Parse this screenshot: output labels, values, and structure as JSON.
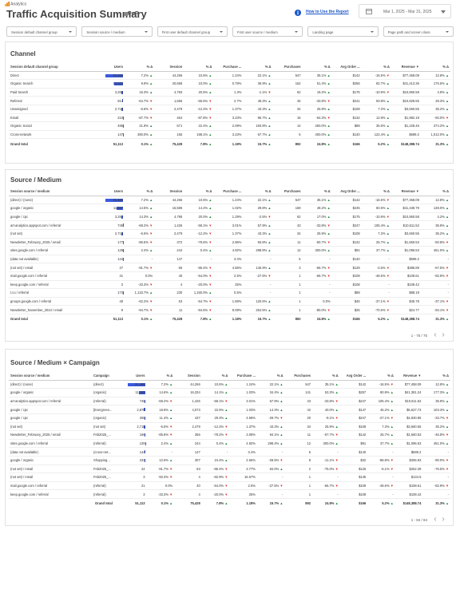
{
  "header": {
    "brand": "Analytics",
    "title": "Traffic Acquisition Summary",
    "badge": "PoP",
    "help_link": "How to Use the Report",
    "date_range": "Mar 1, 2025 - Mar 31, 2025"
  },
  "filters": [
    "Session default channel group",
    "Session source / medium",
    "First user default channel group",
    "First user source / medium",
    "Landing page",
    "Page path and screen class"
  ],
  "sections": [
    {
      "title": "Channel",
      "columns": [
        "Session default channel group",
        "Users",
        "% Δ",
        "Session",
        "% Δ",
        "Purchase ...",
        "% Δ",
        "Purchases",
        "% Δ",
        "Avg Order ...",
        "% Δ",
        "Revenue ▼",
        "% Δ"
      ],
      "rows": [
        [
          "Direct",
          "31,465",
          "7.2% ▲",
          "44,266",
          "10.6% ▲",
          "1.24%",
          "22.1% ▲",
          "547",
          "35.1% ▲",
          "$142",
          "-16.5% ▼",
          "$77,458.09",
          "12.8% ▲"
        ],
        [
          "Organic Search",
          "16,324",
          "9.9% ▲",
          "20,658",
          "10.0% ▲",
          "0.79%",
          "36.9% ▲",
          "162",
          "51.4% ▲",
          "$256",
          "82.7% ▲",
          "$41,413.36",
          "176.5% ▲"
        ],
        [
          "Paid Search",
          "3,284",
          "15.3% ▲",
          "4,783",
          "20.5% ▲",
          "1.3%",
          "-1.1% ▼",
          "62",
          "19.2% ▲",
          "$175",
          "-10.9% ▼",
          "$10,860.58",
          "4.8% ▲"
        ],
        [
          "Referral",
          "914",
          "-64.7% ▼",
          "1,666",
          "-55.6% ▼",
          "2.7%",
          "48.3% ▲",
          "45",
          "-33.8% ▼",
          "$241",
          "93.8% ▲",
          "$10,828.55",
          "28.3% ▲"
        ],
        [
          "Unassigned",
          "2,718",
          "-6.6% ▼",
          "2,479",
          "-12.2% ▼",
          "1.37%",
          "43.3% ▲",
          "34",
          "25.9% ▲",
          "$108",
          "7.3% ▲",
          "$3,660.55",
          "35.2% ▲"
        ],
        [
          "Email",
          "210",
          "-87.7% ▼",
          "464",
          "-87.8% ▼",
          "3.23%",
          "96.7% ▲",
          "15",
          "-64.3% ▼",
          "$132",
          "12.8% ▲",
          "$1,982.19",
          "-60.0% ▼"
        ],
        [
          "Organic Social",
          "485",
          "21.9% ▲",
          "671",
          "22.4% ▲",
          "2.09%",
          "193.8% ▲",
          "14",
          "250.0% ▲",
          "$88",
          "35.5% ▲",
          "$1,228.46",
          "374.2% ▲"
        ],
        [
          "Cross-network",
          "147",
          "390.0% ▲",
          "155",
          "198.1% ▲",
          "3.23%",
          "67.7% ▲",
          "5",
          "400.0% ▲",
          "$140",
          "122.4% ▲",
          "$699.2",
          "1,012.0% ▲"
        ]
      ],
      "total": [
        "Grand total",
        "51,113",
        "0.1% ▲",
        "75,428",
        "7.8% ▲",
        "1.18%",
        "15.7% ▲",
        "892",
        "24.8% ▲",
        "$166",
        "5.2% ▲",
        "$148,388.74",
        "31.3% ▲"
      ]
    },
    {
      "title": "Source / Medium",
      "columns": [
        "Session source / medium",
        "Users",
        "% Δ",
        "Session",
        "% Δ",
        "Purchase ...",
        "% Δ",
        "Purchases",
        "% Δ",
        "Avg Order ...",
        "% Δ",
        "Revenue ▼",
        "% Δ"
      ],
      "rows": [
        [
          "(direct) / (none)",
          "31,465",
          "7.2% ▲",
          "44,266",
          "10.6% ▲",
          "1.24%",
          "22.1% ▲",
          "547",
          "35.1% ▲",
          "$142",
          "-16.5% ▼",
          "$77,458.09",
          "12.8% ▲"
        ],
        [
          "google / organic",
          "11,567",
          "14.5% ▲",
          "16,586",
          "14.2% ▲",
          "1.02%",
          "29.8% ▲",
          "169",
          "48.2% ▲",
          "$245",
          "60.6% ▲",
          "$41,438.79",
          "138.0% ▲"
        ],
        [
          "google / cpc",
          "3,287",
          "14.3% ▲",
          "4,795",
          "20.0% ▲",
          "1.29%",
          "-2.5% ▼",
          "62",
          "17.0% ▲",
          "$175",
          "-10.9% ▼",
          "$10,860.58",
          "4.2% ▲"
        ],
        [
          "art-analytics.appspot.com / referral",
          "745",
          "-68.2% ▼",
          "1,426",
          "-58.1% ▼",
          "3.01%",
          "57.9% ▲",
          "43",
          "-33.8% ▼",
          "$247",
          "105.4% ▲",
          "$10,611.52",
          "35.9% ▲"
        ],
        [
          "(not set)",
          "2,718",
          "-6.6% ▼",
          "2,479",
          "-12.2% ▼",
          "1.37%",
          "43.3% ▲",
          "34",
          "25.9% ▲",
          "$108",
          "7.3% ▲",
          "$3,660.55",
          "35.2% ▲"
        ],
        [
          "Newsletter_February_2025 / email",
          "177",
          "-86.5% ▼",
          "372",
          "-79.6% ▼",
          "2.96%",
          "93.8% ▲",
          "11",
          "-60.7% ▼",
          "$142",
          "25.7% ▲",
          "$1,560.53",
          "-50.8% ▼"
        ],
        [
          "sites.google.com / referral",
          "129",
          "2.4% ▲",
          "244",
          "0.4% ▲",
          "4.92%",
          "298.8% ▲",
          "12",
          "300.0% ▲",
          "$91",
          "37.7% ▲",
          "$1,096.53",
          "451.0% ▲"
        ],
        [
          "(data not available)",
          "144",
          "-",
          "147",
          "-",
          "3.4%",
          "-",
          "5",
          "-",
          "$140",
          "-",
          "$699.2",
          "-"
        ],
        [
          "(not set) / email",
          "27",
          "-91.7% ▼",
          "66",
          "-86.4% ▼",
          "4.55%",
          "146.9% ▲",
          "3",
          "-66.7% ▼",
          "$129",
          "-2.6% ▼",
          "$386.89",
          "-67.5% ▼"
        ],
        [
          "mail.google.com / referral",
          "21",
          "0.0%",
          "40",
          "-54.0% ▼",
          "2.5%",
          "-27.5% ▼",
          "1",
          "-66.7% ▼",
          "$109",
          "-48.6% ▼",
          "$108.61",
          "-82.9% ▼"
        ],
        [
          "keep.google.com / referral",
          "3",
          "-33.3% ▼",
          "4",
          "-20.0% ▼",
          "25%",
          "-",
          "1",
          "-",
          "$108",
          "-",
          "$108.42",
          "-"
        ],
        [
          "t.co / referral",
          "173",
          "1,133.7% ▲",
          "230",
          "1,150.0% ▲",
          "0.5%",
          "-",
          "1",
          "-",
          "$88",
          "-",
          "$88.19",
          "-"
        ],
        [
          "groups.google.com / referral",
          "49",
          "-62.2% ▼",
          "63",
          "-54.7% ▼",
          "1.59%",
          "120.6% ▲",
          "1",
          "0.0%",
          "$46",
          "-37.1% ▼",
          "$45.78",
          "-37.1% ▼"
        ],
        [
          "Newsletter_November_2024 / email",
          "9",
          "-94.7% ▼",
          "11",
          "-94.6% ▼",
          "9.09%",
          "254.5% ▲",
          "1",
          "-80.0% ▼",
          "$25",
          "-70.6% ▼",
          "$24.77",
          "-94.1% ▼"
        ]
      ],
      "total": [
        "Grand total",
        "51,113",
        "0.1% ▲",
        "75,428",
        "7.8% ▲",
        "1.18%",
        "15.7% ▲",
        "892",
        "24.8% ▲",
        "$166",
        "5.2% ▲",
        "$148,388.74",
        "31.3% ▲"
      ],
      "pagination": "1 - 75 / 75"
    },
    {
      "title": "Source / Medium × Campaign",
      "columns": [
        "Session source / medium",
        "Campaign",
        "Users",
        "% Δ",
        "Session",
        "% Δ",
        "Purchase ...",
        "% Δ",
        "Purchases",
        "% Δ",
        "Avg Order ...",
        "% Δ",
        "Revenue ▼",
        "% Δ"
      ],
      "rows": [
        [
          "(direct) / (none)",
          "(direct)",
          "31,465",
          "7.2% ▲",
          "44,266",
          "10.6% ▲",
          "1.24%",
          "22.1% ▲",
          "547",
          "35.1% ▲",
          "$142",
          "-16.5% ▼",
          "$77,458.09",
          "12.8% ▲"
        ],
        [
          "google / organic",
          "(organic)",
          "11,158",
          "14.6% ▲",
          "16,334",
          "14.1% ▲",
          "1.03%",
          "34.4% ▲",
          "141",
          "53.3% ▲",
          "$257",
          "80.9% ▲",
          "$41,381.24",
          "177.3% ▲"
        ],
        [
          "art-analytics.appspot.com / referral",
          "(referral)",
          "745",
          "-68.2% ▼",
          "1,426",
          "-58.1% ▼",
          "3.01%",
          "57.9% ▲",
          "43",
          "-33.8% ▼",
          "$247",
          "105.4% ▲",
          "$10,611.52",
          "35.9% ▲"
        ],
        [
          "google / cpc",
          "[Evergreen...",
          "2,870",
          "18.9% ▲",
          "4,073",
          "22.5% ▲",
          "1.03%",
          "14.3% ▲",
          "42",
          "40.0% ▲",
          "$147",
          "45.2% ▲",
          "$5,627.73",
          "103.3% ▲"
        ],
        [
          "google / cpc",
          "(organic)",
          "265",
          "11.4% ▲",
          "437",
          "29.3% ▲",
          "4.58%",
          "-29.7% ▼",
          "20",
          "-9.1% ▼",
          "$247",
          "-27.1% ▼",
          "$4,930.85",
          "-33.7% ▼"
        ],
        [
          "(not set)",
          "(not set)",
          "2,718",
          "-6.6% ▼",
          "2,479",
          "-12.2% ▼",
          "1.37%",
          "43.3% ▲",
          "34",
          "25.9% ▲",
          "$108",
          "7.3% ▲",
          "$3,660.55",
          "35.2% ▲"
        ],
        [
          "Newsletter_February_2025 / email",
          "Feb2025_...",
          "166",
          "-85.8% ▼",
          "356",
          "-78.2% ▼",
          "3.09%",
          "94.1% ▲",
          "11",
          "-57.7% ▼",
          "$142",
          "25.7% ▲",
          "$1,560.53",
          "-46.8% ▼"
        ],
        [
          "sites.google.com / referral",
          "(referral)",
          "129",
          "2.4% ▲",
          "244",
          "0.4% ▲",
          "4.92%",
          "298.4% ▲",
          "12",
          "300.0% ▲",
          "$91",
          "37.7% ▲",
          "$1,096.53",
          "451.0% ▲"
        ],
        [
          "(data not available)",
          "(cross-net...",
          "144",
          "-",
          "147",
          "-",
          "3.4%",
          "-",
          "5",
          "-",
          "$140",
          "-",
          "$699.2",
          "-"
        ],
        [
          "google / organic",
          "Shopping...",
          "232",
          "12.6% ▲",
          "307",
          "24.4% ▲",
          "2.66%",
          "-28.5% ▼",
          "8",
          "-11.1% ▼",
          "$32",
          "-88.8% ▼",
          "$256.93",
          "-90.0% ▼"
        ],
        [
          "(not set) / email",
          "Feb2025_...",
          "24",
          "-91.7% ▼",
          "53",
          "-86.4% ▼",
          "3.77%",
          "84.0% ▲",
          "2",
          "-75.0% ▼",
          "$126",
          "-6.1% ▼",
          "$252.39",
          "-76.5% ▼"
        ],
        [
          "(not set) / email",
          "Feb2025_...",
          "3",
          "-93.3% ▼",
          "4",
          "-82.9% ▼",
          "16.67%",
          "-",
          "1",
          "-",
          "$135",
          "-",
          "$134.5",
          "-"
        ],
        [
          "mail.google.com / referral",
          "(referral)",
          "21",
          "0.0%",
          "40",
          "-54.0% ▼",
          "2.5%",
          "-27.5% ▼",
          "1",
          "-66.7% ▼",
          "$109",
          "-48.6% ▼",
          "$108.61",
          "-82.9% ▼"
        ],
        [
          "keep.google.com / referral",
          "(referral)",
          "3",
          "-33.3% ▼",
          "4",
          "-20.0% ▼",
          "25%",
          "-",
          "1",
          "-",
          "$108",
          "-",
          "$108.42",
          "-"
        ]
      ],
      "total": [
        "Grand total",
        "51,113",
        "0.1% ▲",
        "75,428",
        "7.8% ▲",
        "1.18%",
        "15.7% ▲",
        "892",
        "24.8% ▲",
        "$166",
        "5.2% ▲",
        "$148,388.74",
        "31.3% ▲"
      ],
      "pagination": "1 - 84 / 84"
    }
  ]
}
